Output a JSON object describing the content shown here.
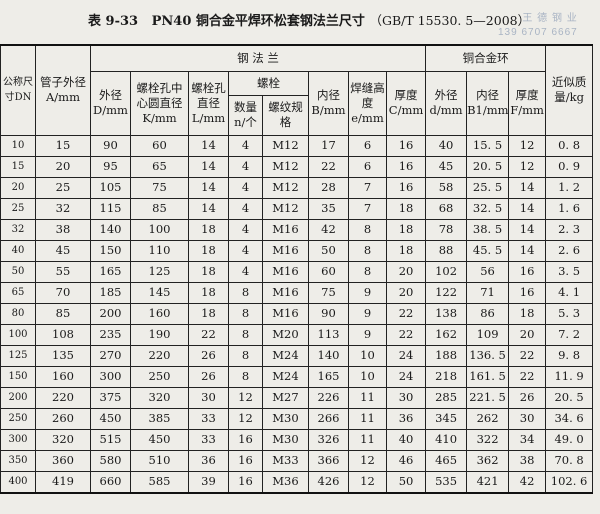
{
  "title": {
    "label": "表 9-33",
    "main": "PN40 铜合金平焊环松套钢法兰尺寸",
    "std": "（GB/T 15530. 5—2008）"
  },
  "watermark": {
    "line1": "王 德 钢 业",
    "line2": "139 6707 6667"
  },
  "header": {
    "dn": "公称尺寸DN",
    "a": "管子外径A/mm",
    "steel_flange": "钢 法 兰",
    "d_outer": "外径D/mm",
    "k": "螺栓孔中心圆直径K/mm",
    "l": "螺栓孔直径L/mm",
    "bolt": "螺栓",
    "n": "数量n/个",
    "thread": "螺纹规格",
    "b": "内径B/mm",
    "e": "焊缝高度e/mm",
    "c": "厚度C/mm",
    "ring": "铜合金环",
    "d_ring": "外径d/mm",
    "b1": "内径B1/mm",
    "f": "厚度F/mm",
    "mass": "近似质量/kg"
  },
  "rows": [
    [
      "10",
      "15",
      "90",
      "60",
      "14",
      "4",
      "M12",
      "17",
      "6",
      "16",
      "40",
      "15. 5",
      "12",
      "0. 8"
    ],
    [
      "15",
      "20",
      "95",
      "65",
      "14",
      "4",
      "M12",
      "22",
      "6",
      "16",
      "45",
      "20. 5",
      "12",
      "0. 9"
    ],
    [
      "20",
      "25",
      "105",
      "75",
      "14",
      "4",
      "M12",
      "28",
      "7",
      "16",
      "58",
      "25. 5",
      "14",
      "1. 2"
    ],
    [
      "25",
      "32",
      "115",
      "85",
      "14",
      "4",
      "M12",
      "35",
      "7",
      "18",
      "68",
      "32. 5",
      "14",
      "1. 6"
    ],
    [
      "32",
      "38",
      "140",
      "100",
      "18",
      "4",
      "M16",
      "42",
      "8",
      "18",
      "78",
      "38. 5",
      "14",
      "2. 3"
    ],
    [
      "40",
      "45",
      "150",
      "110",
      "18",
      "4",
      "M16",
      "50",
      "8",
      "18",
      "88",
      "45. 5",
      "14",
      "2. 6"
    ],
    [
      "50",
      "55",
      "165",
      "125",
      "18",
      "4",
      "M16",
      "60",
      "8",
      "20",
      "102",
      "56",
      "16",
      "3. 5"
    ],
    [
      "65",
      "70",
      "185",
      "145",
      "18",
      "8",
      "M16",
      "75",
      "9",
      "20",
      "122",
      "71",
      "16",
      "4. 1"
    ],
    [
      "80",
      "85",
      "200",
      "160",
      "18",
      "8",
      "M16",
      "90",
      "9",
      "22",
      "138",
      "86",
      "18",
      "5. 3"
    ],
    [
      "100",
      "108",
      "235",
      "190",
      "22",
      "8",
      "M20",
      "113",
      "9",
      "22",
      "162",
      "109",
      "20",
      "7. 2"
    ],
    [
      "125",
      "135",
      "270",
      "220",
      "26",
      "8",
      "M24",
      "140",
      "10",
      "24",
      "188",
      "136. 5",
      "22",
      "9. 8"
    ],
    [
      "150",
      "160",
      "300",
      "250",
      "26",
      "8",
      "M24",
      "165",
      "10",
      "24",
      "218",
      "161. 5",
      "22",
      "11. 9"
    ],
    [
      "200",
      "220",
      "375",
      "320",
      "30",
      "12",
      "M27",
      "226",
      "11",
      "30",
      "285",
      "221. 5",
      "26",
      "20. 5"
    ],
    [
      "250",
      "260",
      "450",
      "385",
      "33",
      "12",
      "M30",
      "266",
      "11",
      "36",
      "345",
      "262",
      "30",
      "34. 6"
    ],
    [
      "300",
      "320",
      "515",
      "450",
      "33",
      "16",
      "M30",
      "326",
      "11",
      "40",
      "410",
      "322",
      "34",
      "49. 0"
    ],
    [
      "350",
      "360",
      "580",
      "510",
      "36",
      "16",
      "M33",
      "366",
      "12",
      "46",
      "465",
      "362",
      "38",
      "70. 8"
    ],
    [
      "400",
      "419",
      "660",
      "585",
      "39",
      "16",
      "M36",
      "426",
      "12",
      "50",
      "535",
      "421",
      "42",
      "102. 6"
    ]
  ]
}
